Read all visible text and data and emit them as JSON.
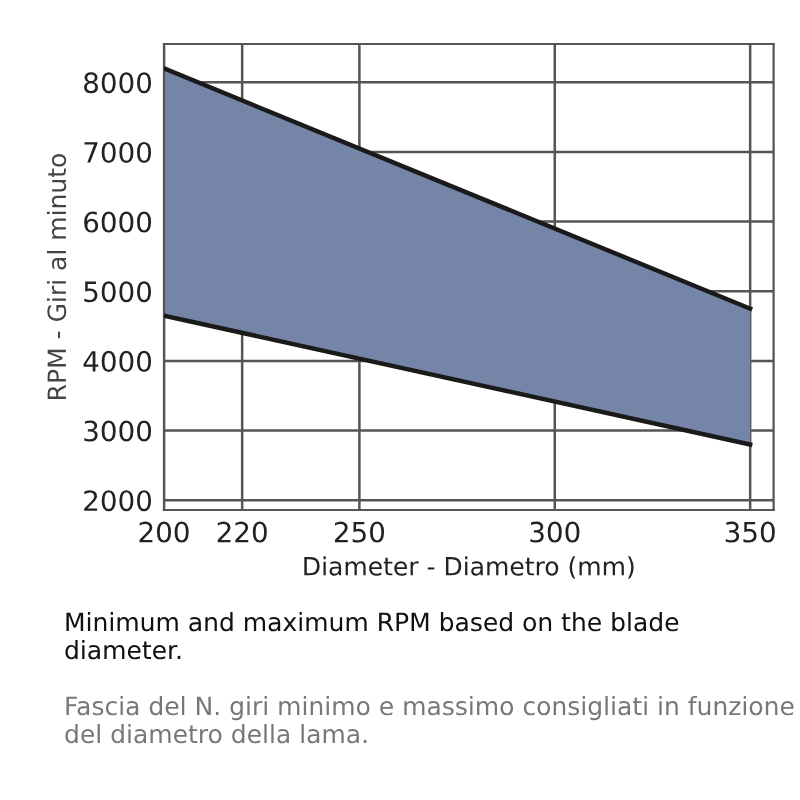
{
  "chart_data": {
    "type": "line",
    "xlabel": "Diameter - Diametro (mm)",
    "ylabel": "RPM - Giri al minuto",
    "x": [
      200,
      350
    ],
    "series": [
      {
        "color": "#1a1a1a",
        "values": [
          8200,
          4750
        ],
        "lower": [
          4650,
          2800
        ],
        "upper": [
          8200,
          4750
        ]
      },
      {
        "color": "#1a1a1a",
        "values": [
          4650,
          2800
        ]
      }
    ],
    "xlim": [
      200,
      356
    ],
    "xticks": [
      200,
      220,
      250,
      300,
      350
    ],
    "ylim": [
      1860,
      8550
    ],
    "yticks": [
      2000,
      3000,
      4000,
      5000,
      6000,
      7000,
      8000
    ],
    "grid": true,
    "annotations": [
      "Minimum and maximum RPM based on the blade diameter.",
      "Fascia del N. giri minimo e massimo consigliati in funzione del diametro della lama."
    ]
  }
}
